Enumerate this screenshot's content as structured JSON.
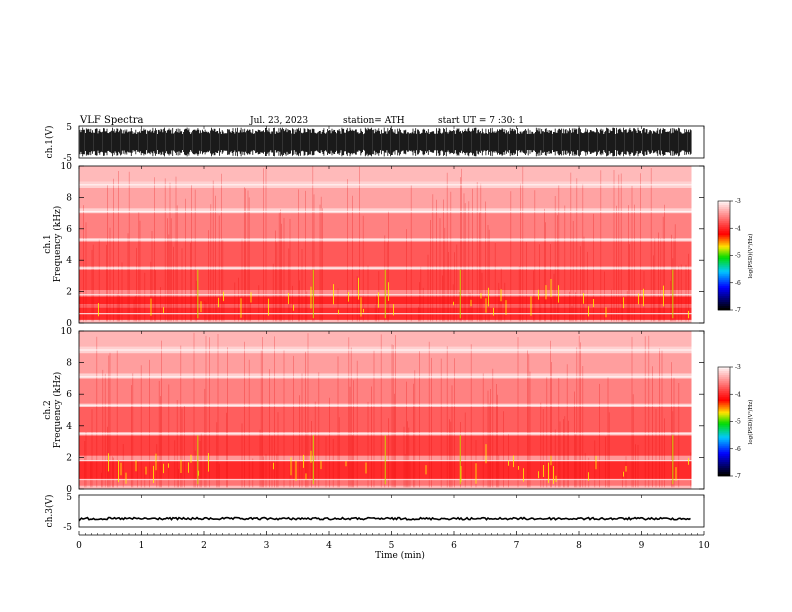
{
  "header": {
    "title": "VLF  Spectra",
    "date": "Jul.  23, 2023",
    "station": "station= ATH",
    "start": "start  UT  =   7  :30: 1"
  },
  "colors": {
    "waveform": "#000000",
    "spectrogram_high": "#ff0000",
    "spectrogram_low": "#ffd2d2",
    "bright_streak": "#ffff00",
    "frame": "#000000"
  },
  "chart_data": [
    {
      "type": "line",
      "name": "ch1-waveform",
      "ylabel": "ch.1(V)",
      "ylim": [
        -5,
        5
      ],
      "y_ticks": [
        "5",
        "-5"
      ],
      "x_range_min": [
        0,
        9.8
      ],
      "approx_amplitude_V": 4.5
    },
    {
      "type": "heatmap",
      "name": "ch1-spectrogram",
      "ylabel": "ch.1\nFrequency  (kHz)",
      "ylim": [
        0,
        10
      ],
      "y_ticks": [
        "0",
        "2",
        "4",
        "6",
        "8",
        "10"
      ],
      "x_range_min": [
        0,
        9.8
      ],
      "bands_kHz": [
        {
          "from": 0.0,
          "to": 0.2,
          "level": 0.3
        },
        {
          "from": 0.2,
          "to": 1.0,
          "level": 0.92
        },
        {
          "from": 1.0,
          "to": 1.2,
          "level": 0.7
        },
        {
          "from": 1.2,
          "to": 1.7,
          "level": 0.95
        },
        {
          "from": 1.7,
          "to": 2.1,
          "level": 0.5
        },
        {
          "from": 2.1,
          "to": 3.4,
          "level": 0.8
        },
        {
          "from": 3.4,
          "to": 3.6,
          "level": 0.3
        },
        {
          "from": 3.6,
          "to": 5.2,
          "level": 0.72
        },
        {
          "from": 5.2,
          "to": 5.4,
          "level": 0.25
        },
        {
          "from": 5.4,
          "to": 7.0,
          "level": 0.55
        },
        {
          "from": 7.0,
          "to": 7.3,
          "level": 0.2
        },
        {
          "from": 7.3,
          "to": 8.6,
          "level": 0.4
        },
        {
          "from": 8.6,
          "to": 9.0,
          "level": 0.2
        },
        {
          "from": 9.0,
          "to": 10.0,
          "level": 0.3
        }
      ],
      "colorbar": {
        "label": "log(PSD)(V²/Hz)",
        "ticks": [
          "-3",
          "-4",
          "-5",
          "-6",
          "-7"
        ],
        "range": [
          -7,
          -3
        ]
      }
    },
    {
      "type": "heatmap",
      "name": "ch2-spectrogram",
      "ylabel": "ch.2\nFrequency  (kHz)",
      "ylim": [
        0,
        10
      ],
      "y_ticks": [
        "0",
        "2",
        "4",
        "6",
        "8",
        "10"
      ],
      "x_range_min": [
        0,
        9.8
      ],
      "bands_kHz": [
        {
          "from": 0.0,
          "to": 0.2,
          "level": 0.3
        },
        {
          "from": 0.2,
          "to": 0.6,
          "level": 0.6
        },
        {
          "from": 0.6,
          "to": 1.8,
          "level": 0.92
        },
        {
          "from": 1.8,
          "to": 2.1,
          "level": 0.45
        },
        {
          "from": 2.1,
          "to": 3.4,
          "level": 0.82
        },
        {
          "from": 3.4,
          "to": 3.6,
          "level": 0.3
        },
        {
          "from": 3.6,
          "to": 5.2,
          "level": 0.7
        },
        {
          "from": 5.2,
          "to": 5.4,
          "level": 0.25
        },
        {
          "from": 5.4,
          "to": 7.0,
          "level": 0.55
        },
        {
          "from": 7.0,
          "to": 7.3,
          "level": 0.2
        },
        {
          "from": 7.3,
          "to": 8.6,
          "level": 0.42
        },
        {
          "from": 8.6,
          "to": 9.0,
          "level": 0.2
        },
        {
          "from": 9.0,
          "to": 10.0,
          "level": 0.32
        }
      ],
      "colorbar": {
        "label": "log(PSD)(V²/Hz)",
        "ticks": [
          "-3",
          "-4",
          "-5",
          "-6",
          "-7"
        ],
        "range": [
          -7,
          -3
        ]
      }
    },
    {
      "type": "line",
      "name": "ch3-waveform",
      "ylabel": "ch.3(V)",
      "ylim": [
        -5,
        5
      ],
      "y_ticks": [
        "5",
        "-5"
      ],
      "x_range_min": [
        0,
        9.8
      ],
      "approx_level_V": -2.4
    }
  ],
  "xaxis": {
    "label": "Time  (min)",
    "ticks": [
      "0",
      "1",
      "2",
      "3",
      "4",
      "5",
      "6",
      "7",
      "8",
      "9",
      "10"
    ],
    "range": [
      0,
      10
    ]
  }
}
